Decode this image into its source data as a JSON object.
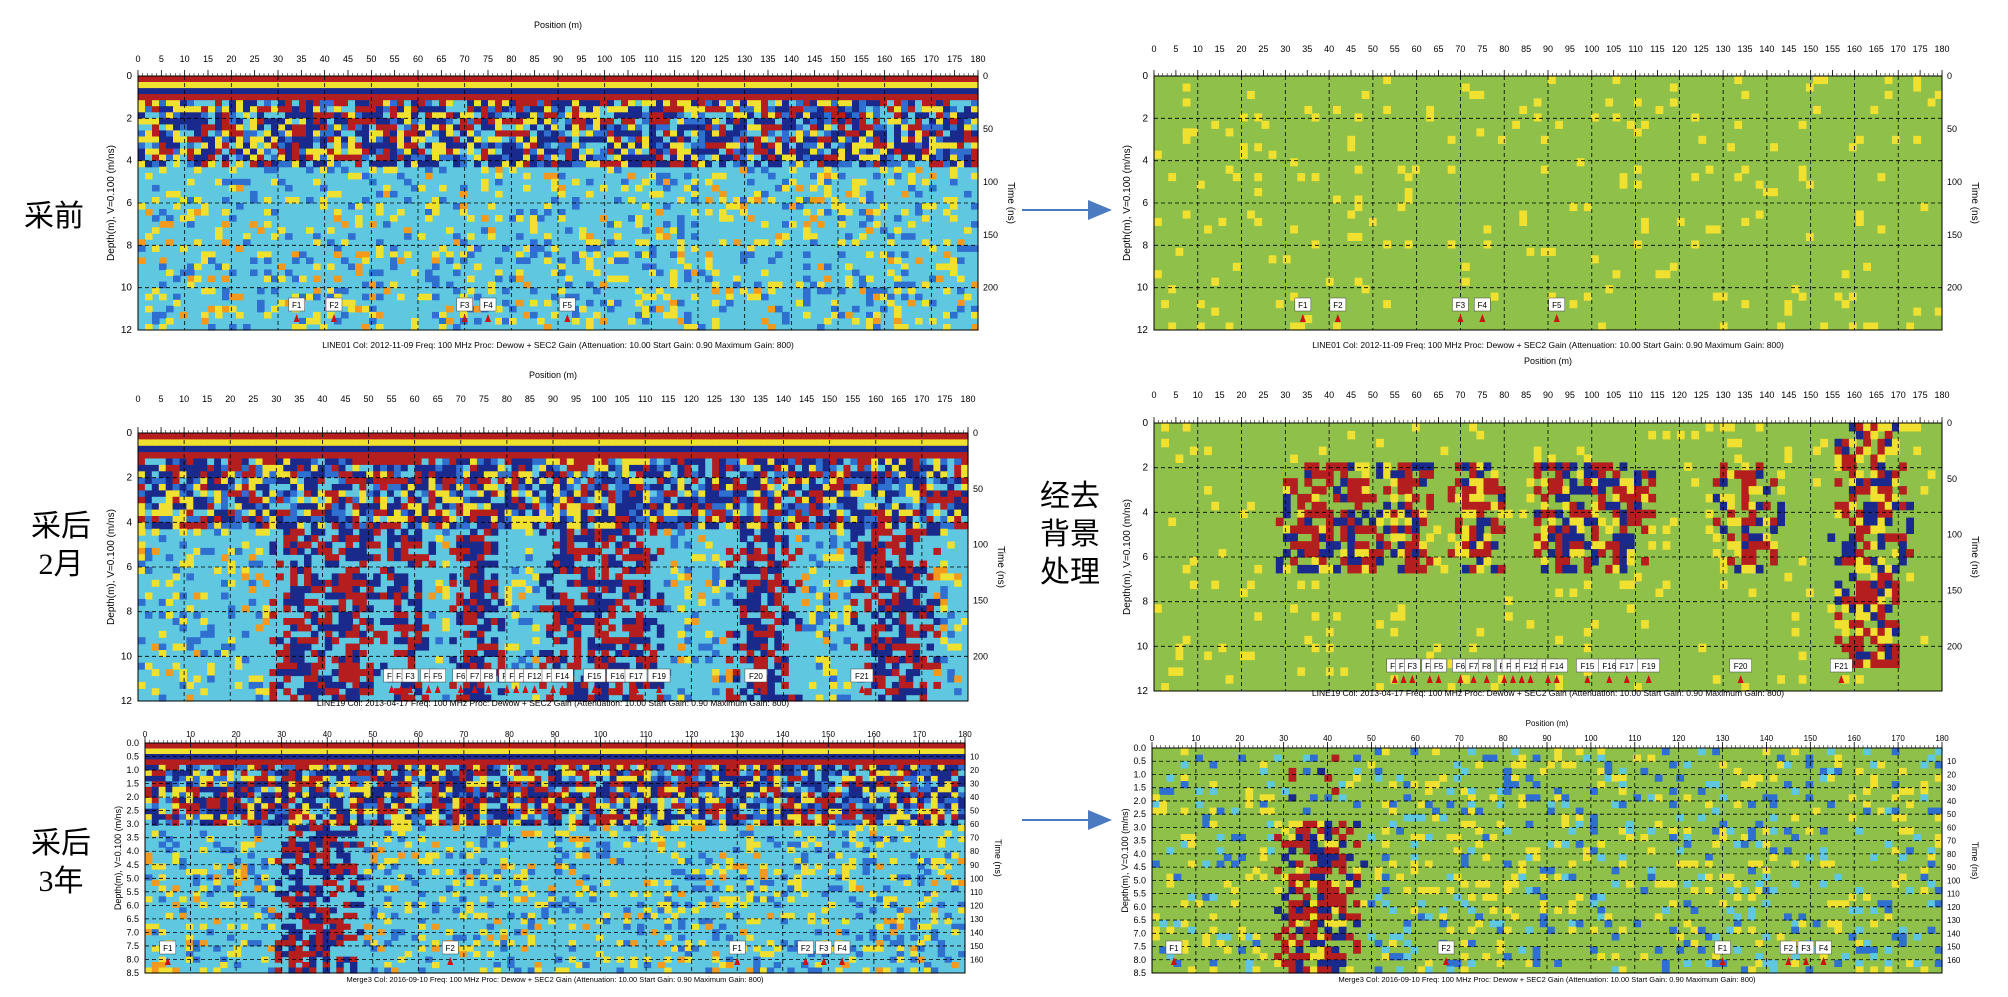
{
  "labels": {
    "before": "采前",
    "after_2m_line1": "采后",
    "after_2m_line2": "2月",
    "after_3y_line1": "采后",
    "after_3y_line2": "3年",
    "process_line1": "经去",
    "process_line2": "背景",
    "process_line3": "处理"
  },
  "colors": {
    "deep_blue": "#1a2a8c",
    "blue": "#2f6fd0",
    "cyan": "#5fc8e0",
    "green": "#8fc04a",
    "yellow": "#f0e030",
    "orange": "#f39a1e",
    "red": "#b41e1e",
    "arrow": "#4a7ac0"
  },
  "chart_data": [
    {
      "id": "raw-before",
      "type": "heatmap",
      "title": "Position (m)",
      "caption": "LINE01  Col: 2012-11-09 Freq: 100 MHz Proc: Dewow + SEC2 Gain (Attenuation: 10.00 Start Gain: 0.90 Maximum Gain: 800)",
      "xlabel": "Position (m)",
      "ylabel_left": "Depth(m), V=0.100 (m/ns)",
      "ylabel_right": "Time (ns)",
      "xlim": [
        0,
        180
      ],
      "depth_lim": [
        0,
        12
      ],
      "time_lim": [
        0,
        240
      ],
      "x_ticks": [
        0,
        5,
        10,
        15,
        20,
        25,
        30,
        35,
        40,
        45,
        50,
        55,
        60,
        65,
        70,
        75,
        80,
        85,
        90,
        95,
        100,
        105,
        110,
        115,
        120,
        125,
        130,
        135,
        140,
        145,
        150,
        155,
        160,
        165,
        170,
        175,
        180
      ],
      "depth_ticks": [
        0,
        2,
        4,
        6,
        8,
        10,
        12
      ],
      "time_ticks": [
        0,
        50,
        100,
        150,
        200
      ],
      "markers": [
        {
          "label": "F1",
          "x": 34
        },
        {
          "label": "F2",
          "x": 42
        },
        {
          "label": "F3",
          "x": 70
        },
        {
          "label": "F4",
          "x": 75
        },
        {
          "label": "F5",
          "x": 92
        }
      ]
    },
    {
      "id": "filtered-before",
      "type": "heatmap",
      "caption": "LINE01  Col: 2012-11-09 Freq: 100 MHz Proc: Dewow + SEC2 Gain (Attenuation: 10.00 Start Gain: 0.90 Maximum Gain: 800)",
      "xlabel": "Position (m)",
      "ylabel_left": "Depth(m), V=0.100 (m/ns)",
      "ylabel_right": "Time (ns)",
      "xlim": [
        0,
        180
      ],
      "depth_lim": [
        0,
        12
      ],
      "time_lim": [
        0,
        240
      ],
      "x_ticks": [
        0,
        5,
        10,
        15,
        20,
        25,
        30,
        35,
        40,
        45,
        50,
        55,
        60,
        65,
        70,
        75,
        80,
        85,
        90,
        95,
        100,
        105,
        110,
        115,
        120,
        125,
        130,
        135,
        140,
        145,
        150,
        155,
        160,
        165,
        170,
        175,
        180
      ],
      "depth_ticks": [
        0,
        2,
        4,
        6,
        8,
        10,
        12
      ],
      "time_ticks": [
        0,
        50,
        100,
        150,
        200
      ],
      "markers": [
        {
          "label": "F1",
          "x": 34
        },
        {
          "label": "F2",
          "x": 42
        },
        {
          "label": "F3",
          "x": 70
        },
        {
          "label": "F4",
          "x": 75
        },
        {
          "label": "F5",
          "x": 92
        }
      ]
    },
    {
      "id": "raw-2months",
      "type": "heatmap",
      "title": "Position (m)",
      "caption": "LINE19  Col: 2013-04-17 Freq: 100 MHz Proc: Dewow + SEC2 Gain (Attenuation: 10.00 Start Gain: 0.90 Maximum Gain: 800)",
      "xlabel": "Position (m)",
      "ylabel_left": "Depth(m), V=0.100 (m/ns)",
      "ylabel_right": "Time (ns)",
      "xlim": [
        0,
        180
      ],
      "depth_lim": [
        0,
        12
      ],
      "time_lim": [
        0,
        240
      ],
      "x_ticks": [
        0,
        5,
        10,
        15,
        20,
        25,
        30,
        35,
        40,
        45,
        50,
        55,
        60,
        65,
        70,
        75,
        80,
        85,
        90,
        95,
        100,
        105,
        110,
        115,
        120,
        125,
        130,
        135,
        140,
        145,
        150,
        155,
        160,
        165,
        170,
        175,
        180
      ],
      "depth_ticks": [
        0,
        2,
        4,
        6,
        8,
        10,
        12
      ],
      "time_ticks": [
        0,
        50,
        100,
        150,
        200
      ],
      "markers": [
        {
          "label": "F1",
          "x": 55
        },
        {
          "label": "F2",
          "x": 57
        },
        {
          "label": "F3",
          "x": 59
        },
        {
          "label": "F4",
          "x": 63
        },
        {
          "label": "F5",
          "x": 65
        },
        {
          "label": "F6",
          "x": 70
        },
        {
          "label": "F7",
          "x": 73
        },
        {
          "label": "F8",
          "x": 76
        },
        {
          "label": "F9",
          "x": 80
        },
        {
          "label": "F10",
          "x": 82
        },
        {
          "label": "F11",
          "x": 84
        },
        {
          "label": "F12",
          "x": 86
        },
        {
          "label": "F13",
          "x": 90
        },
        {
          "label": "F14",
          "x": 92
        },
        {
          "label": "F15",
          "x": 99
        },
        {
          "label": "F16",
          "x": 104
        },
        {
          "label": "F17",
          "x": 108
        },
        {
          "label": "F19",
          "x": 113
        },
        {
          "label": "F20",
          "x": 134
        },
        {
          "label": "F21",
          "x": 157
        }
      ]
    },
    {
      "id": "filtered-2months",
      "type": "heatmap",
      "caption": "LINE19  Col: 2013-04-17 Freq: 100 MHz Proc: Dewow + SEC2 Gain (Attenuation: 10.00 Start Gain: 0.90 Maximum Gain: 800)",
      "xlabel": "Position (m)",
      "ylabel_left": "Depth(m), V=0.100 (m/ns)",
      "ylabel_right": "Time (ns)",
      "xlim": [
        0,
        180
      ],
      "depth_lim": [
        0,
        12
      ],
      "time_lim": [
        0,
        240
      ],
      "x_ticks": [
        0,
        5,
        10,
        15,
        20,
        25,
        30,
        35,
        40,
        45,
        50,
        55,
        60,
        65,
        70,
        75,
        80,
        85,
        90,
        95,
        100,
        105,
        110,
        115,
        120,
        125,
        130,
        135,
        140,
        145,
        150,
        155,
        160,
        165,
        170,
        175,
        180
      ],
      "depth_ticks": [
        0,
        2,
        4,
        6,
        8,
        10,
        12
      ],
      "time_ticks": [
        0,
        50,
        100,
        150,
        200
      ],
      "markers": [
        {
          "label": "F1",
          "x": 55
        },
        {
          "label": "F2",
          "x": 57
        },
        {
          "label": "F3",
          "x": 59
        },
        {
          "label": "F4",
          "x": 63
        },
        {
          "label": "F5",
          "x": 65
        },
        {
          "label": "F6",
          "x": 70
        },
        {
          "label": "F7",
          "x": 73
        },
        {
          "label": "F8",
          "x": 76
        },
        {
          "label": "F9",
          "x": 80
        },
        {
          "label": "F10",
          "x": 82
        },
        {
          "label": "F11",
          "x": 84
        },
        {
          "label": "F12",
          "x": 86
        },
        {
          "label": "F13",
          "x": 90
        },
        {
          "label": "F14",
          "x": 92
        },
        {
          "label": "F15",
          "x": 99
        },
        {
          "label": "F16",
          "x": 104
        },
        {
          "label": "F17",
          "x": 108
        },
        {
          "label": "F19",
          "x": 113
        },
        {
          "label": "F20",
          "x": 134
        },
        {
          "label": "F21",
          "x": 157
        }
      ]
    },
    {
      "id": "raw-3years",
      "type": "heatmap",
      "caption": "Merge3  Col: 2016-09-10 Freq: 100 MHz Proc: Dewow + SEC2 Gain (Attenuation: 10.00 Start Gain: 0.90 Maximum Gain: 800)",
      "xlabel": "",
      "ylabel_left": "Depth(m), V=0.100 (m/ns)",
      "ylabel_right": "Time (ns)",
      "xlim": [
        0,
        180
      ],
      "depth_lim": [
        0,
        8.5
      ],
      "time_lim": [
        0,
        170
      ],
      "x_ticks": [
        0,
        10,
        20,
        30,
        40,
        50,
        60,
        70,
        80,
        90,
        100,
        110,
        120,
        130,
        140,
        150,
        160,
        170,
        180
      ],
      "depth_ticks": [
        "0.0",
        "0.5",
        "1.0",
        "1.5",
        "2.0",
        "2.5",
        "3.0",
        "3.5",
        "4.0",
        "4.5",
        "5.0",
        "5.5",
        "6.0",
        "6.5",
        "7.0",
        "7.5",
        "8.0",
        "8.5"
      ],
      "time_ticks": [
        10,
        20,
        30,
        40,
        50,
        60,
        70,
        80,
        90,
        100,
        110,
        120,
        130,
        140,
        150,
        160
      ],
      "markers": [
        {
          "label": "F1",
          "x": 5
        },
        {
          "label": "F2",
          "x": 67
        },
        {
          "label": "F1",
          "x": 130
        },
        {
          "label": "F2",
          "x": 145
        },
        {
          "label": "F3",
          "x": 149
        },
        {
          "label": "F4",
          "x": 153
        }
      ]
    },
    {
      "id": "filtered-3years",
      "type": "heatmap",
      "title": "Position (m)",
      "caption": "Merge3  Col: 2016-09-10 Freq: 100 MHz Proc: Dewow + SEC2 Gain (Attenuation: 10.00 Start Gain: 0.90 Maximum Gain: 800)",
      "xlabel": "",
      "ylabel_left": "Depth(m), V=0.100 (m/ns)",
      "ylabel_right": "Time (ns)",
      "xlim": [
        0,
        180
      ],
      "depth_lim": [
        0,
        8.5
      ],
      "time_lim": [
        0,
        170
      ],
      "x_ticks": [
        0,
        10,
        20,
        30,
        40,
        50,
        60,
        70,
        80,
        90,
        100,
        110,
        120,
        130,
        140,
        150,
        160,
        170,
        180
      ],
      "depth_ticks": [
        "0.0",
        "0.5",
        "1.0",
        "1.5",
        "2.0",
        "2.5",
        "3.0",
        "3.5",
        "4.0",
        "4.5",
        "5.0",
        "5.5",
        "6.0",
        "6.5",
        "7.0",
        "7.5",
        "8.0",
        "8.5"
      ],
      "time_ticks": [
        10,
        20,
        30,
        40,
        50,
        60,
        70,
        80,
        90,
        100,
        110,
        120,
        130,
        140,
        150,
        160
      ],
      "markers": [
        {
          "label": "F1",
          "x": 5
        },
        {
          "label": "F2",
          "x": 67
        },
        {
          "label": "F1",
          "x": 130
        },
        {
          "label": "F2",
          "x": 145
        },
        {
          "label": "F3",
          "x": 149
        },
        {
          "label": "F4",
          "x": 153
        }
      ]
    }
  ]
}
